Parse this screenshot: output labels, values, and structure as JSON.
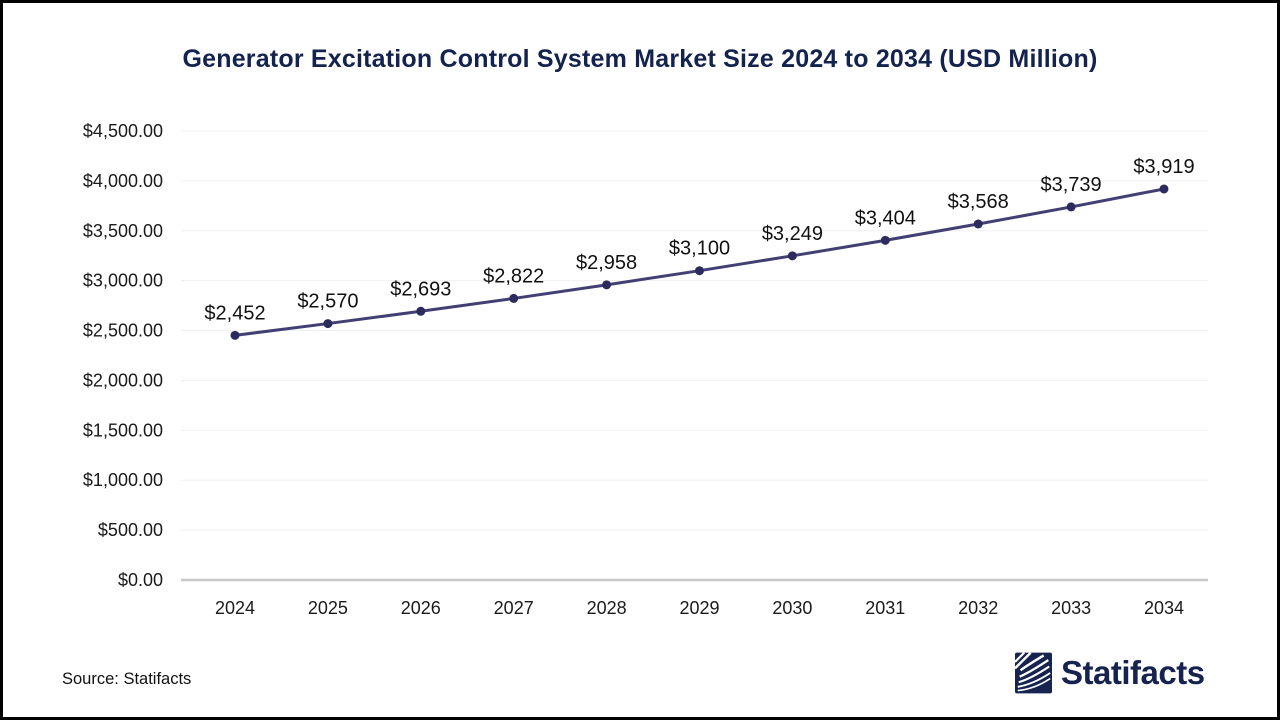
{
  "title": "Generator Excitation Control System Market Size 2024 to 2034 (USD Million)",
  "source": {
    "text": "Source: Statifacts"
  },
  "brand": {
    "name": "Statifacts",
    "logo_icon": "statifacts-wave-logo"
  },
  "colors": {
    "title": "#13234e",
    "line": "#413f73",
    "marker": "#2d2b5e",
    "grid": "#f0f0f0",
    "zero_axis": "#c7c7c7",
    "axis_text": "#1a1a1a",
    "point_label": "#111111",
    "brand_navy": "#172450"
  },
  "chart_data": {
    "type": "line",
    "title": "Generator Excitation Control System Market Size 2024 to 2034 (USD Million)",
    "categories": [
      "2024",
      "2025",
      "2026",
      "2027",
      "2028",
      "2029",
      "2030",
      "2031",
      "2032",
      "2033",
      "2034"
    ],
    "values": [
      2452,
      2570,
      2693,
      2822,
      2958,
      3100,
      3249,
      3404,
      3568,
      3739,
      3919
    ],
    "xlabel": "",
    "ylabel": "",
    "ylim": [
      0,
      4500
    ],
    "ytick_step": 500,
    "ytick_prefix": "$",
    "ytick_suffix": ".00",
    "point_label_prefix": "$",
    "grid": true,
    "legend": "none",
    "markers": true
  }
}
